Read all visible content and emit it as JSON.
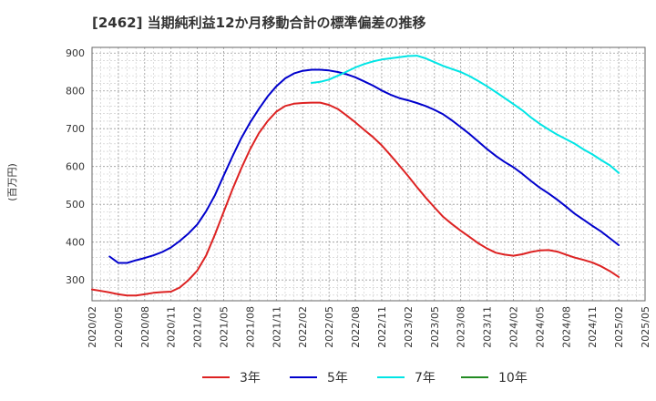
{
  "chart_data": {
    "type": "line",
    "title": "[2462]  当期純利益12か月移動合計の標準偏差の推移",
    "ylabel": "(百万円)",
    "xlabel": "",
    "ylim": [
      245,
      915
    ],
    "yticks": [
      300,
      400,
      500,
      600,
      700,
      800,
      900
    ],
    "xticks": [
      "2020/02",
      "2020/05",
      "2020/08",
      "2020/11",
      "2021/02",
      "2021/05",
      "2021/08",
      "2021/11",
      "2022/02",
      "2022/05",
      "2022/08",
      "2022/11",
      "2023/02",
      "2023/05",
      "2023/08",
      "2023/11",
      "2024/02",
      "2024/05",
      "2024/08",
      "2024/11",
      "2025/02",
      "2025/05"
    ],
    "grid": true,
    "legend_position": "bottom",
    "series": [
      {
        "name": "3年",
        "color": "#dd2222",
        "x": [
          "2020/02",
          "2020/03",
          "2020/04",
          "2020/05",
          "2020/06",
          "2020/07",
          "2020/08",
          "2020/09",
          "2020/10",
          "2020/11",
          "2020/12",
          "2021/01",
          "2021/02",
          "2021/03",
          "2021/04",
          "2021/05",
          "2021/06",
          "2021/07",
          "2021/08",
          "2021/09",
          "2021/10",
          "2021/11",
          "2021/12",
          "2022/01",
          "2022/02",
          "2022/03",
          "2022/04",
          "2022/05",
          "2022/06",
          "2022/07",
          "2022/08",
          "2022/09",
          "2022/10",
          "2022/11",
          "2022/12",
          "2023/01",
          "2023/02",
          "2023/03",
          "2023/04",
          "2023/05",
          "2023/06",
          "2023/07",
          "2023/08",
          "2023/09",
          "2023/10",
          "2023/11",
          "2023/12",
          "2024/01",
          "2024/02",
          "2024/03",
          "2024/04",
          "2024/05",
          "2024/06",
          "2024/07",
          "2024/08",
          "2024/09",
          "2024/10",
          "2024/11",
          "2024/12",
          "2025/01",
          "2025/02"
        ],
        "values": [
          275,
          271,
          267,
          262,
          259,
          259,
          262,
          266,
          268,
          269,
          280,
          300,
          325,
          365,
          420,
          480,
          540,
          595,
          645,
          688,
          720,
          745,
          760,
          766,
          768,
          769,
          769,
          763,
          752,
          735,
          717,
          697,
          678,
          656,
          630,
          603,
          575,
          546,
          518,
          492,
          467,
          448,
          430,
          414,
          397,
          383,
          372,
          367,
          364,
          368,
          374,
          378,
          379,
          375,
          367,
          359,
          353,
          346,
          336,
          323,
          308
        ]
      },
      {
        "name": "5年",
        "color": "#0000cc",
        "x": [
          "2020/04",
          "2020/05",
          "2020/06",
          "2020/07",
          "2020/08",
          "2020/09",
          "2020/10",
          "2020/11",
          "2020/12",
          "2021/01",
          "2021/02",
          "2021/03",
          "2021/04",
          "2021/05",
          "2021/06",
          "2021/07",
          "2021/08",
          "2021/09",
          "2021/10",
          "2021/11",
          "2021/12",
          "2022/01",
          "2022/02",
          "2022/03",
          "2022/04",
          "2022/05",
          "2022/06",
          "2022/07",
          "2022/08",
          "2022/09",
          "2022/10",
          "2022/11",
          "2022/12",
          "2023/01",
          "2023/02",
          "2023/03",
          "2023/04",
          "2023/05",
          "2023/06",
          "2023/07",
          "2023/08",
          "2023/09",
          "2023/10",
          "2023/11",
          "2023/12",
          "2024/01",
          "2024/02",
          "2024/03",
          "2024/04",
          "2024/05",
          "2024/06",
          "2024/07",
          "2024/08",
          "2024/09",
          "2024/10",
          "2024/11",
          "2024/12",
          "2025/01",
          "2025/02"
        ],
        "values": [
          362,
          345,
          345,
          352,
          358,
          365,
          374,
          386,
          403,
          423,
          447,
          482,
          524,
          576,
          627,
          675,
          716,
          752,
          785,
          812,
          833,
          846,
          853,
          856,
          856,
          854,
          850,
          844,
          836,
          825,
          814,
          801,
          790,
          781,
          775,
          768,
          760,
          750,
          738,
          722,
          704,
          686,
          666,
          646,
          628,
          612,
          598,
          581,
          562,
          544,
          529,
          512,
          494,
          475,
          459,
          443,
          428,
          410,
          392
        ]
      },
      {
        "name": "7年",
        "color": "#00e5e5",
        "x": [
          "2022/03",
          "2022/04",
          "2022/05",
          "2022/06",
          "2022/07",
          "2022/08",
          "2022/09",
          "2022/10",
          "2022/11",
          "2022/12",
          "2023/01",
          "2023/02",
          "2023/03",
          "2023/04",
          "2023/05",
          "2023/06",
          "2023/07",
          "2023/08",
          "2023/09",
          "2023/10",
          "2023/11",
          "2023/12",
          "2024/01",
          "2024/02",
          "2024/03",
          "2024/04",
          "2024/05",
          "2024/06",
          "2024/07",
          "2024/08",
          "2024/09",
          "2024/10",
          "2024/11",
          "2024/12",
          "2025/01",
          "2025/02"
        ],
        "values": [
          821,
          824,
          830,
          840,
          851,
          862,
          871,
          878,
          883,
          886,
          889,
          892,
          893,
          886,
          876,
          866,
          858,
          850,
          839,
          826,
          812,
          797,
          781,
          765,
          749,
          730,
          713,
          698,
          684,
          672,
          660,
          645,
          632,
          617,
          603,
          583
        ]
      },
      {
        "name": "10年",
        "color": "#228b22",
        "x": [],
        "values": []
      }
    ]
  }
}
